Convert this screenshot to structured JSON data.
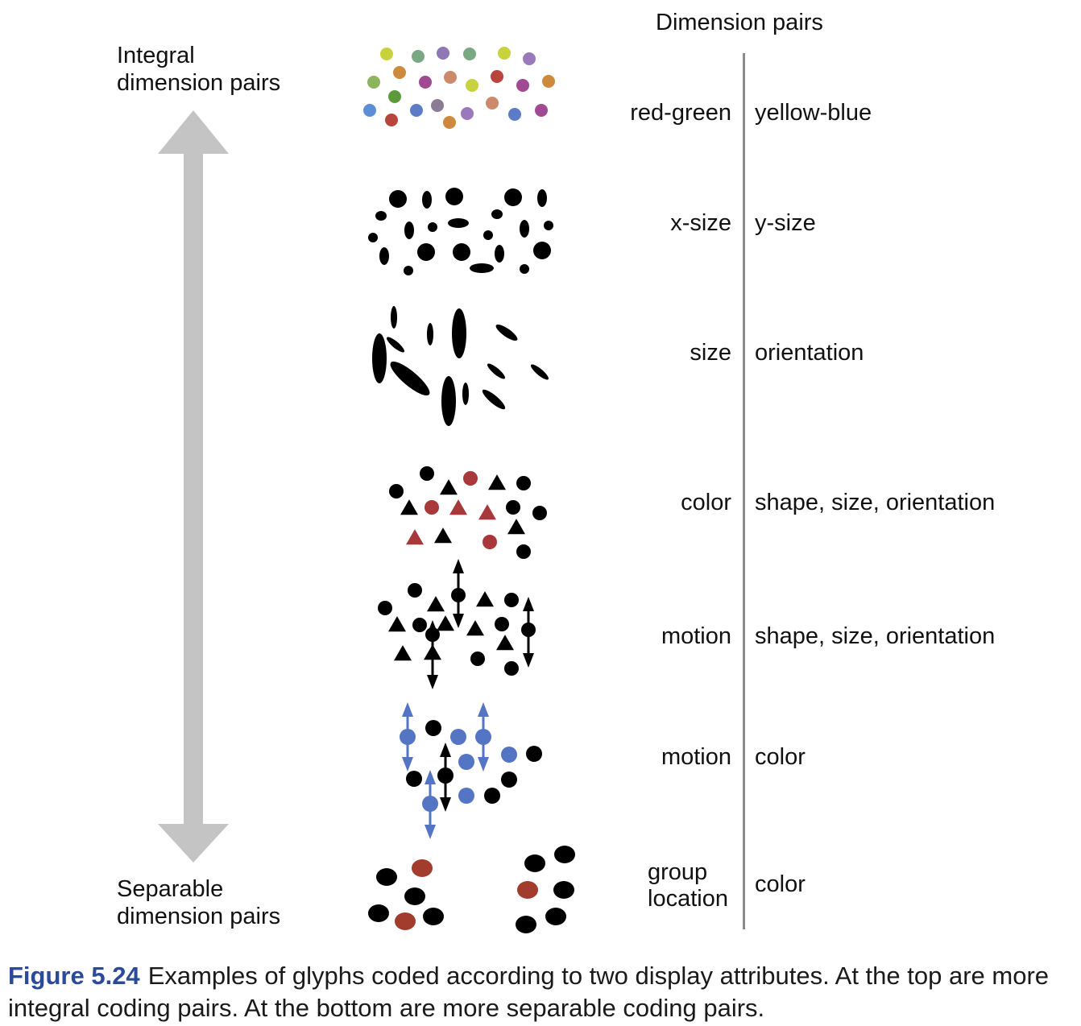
{
  "header": "Dimension pairs",
  "left_labels": {
    "top": [
      "Integral",
      "dimension pairs"
    ],
    "bottom": [
      "Separable",
      "dimension pairs"
    ]
  },
  "rows": [
    {
      "left": "red-green",
      "right": "yellow-blue"
    },
    {
      "left": "x-size",
      "right": "y-size"
    },
    {
      "left": "size",
      "right": "orientation"
    },
    {
      "left": "color",
      "right": "shape, size, orientation"
    },
    {
      "left": "motion",
      "right": "shape, size, orientation"
    },
    {
      "left": "motion",
      "right": "color"
    },
    {
      "left_lines": [
        "group",
        "location"
      ],
      "right": "color"
    }
  ],
  "caption": {
    "figure": "Figure 5.24",
    "text": "Examples of glyphs coded according to two display attributes. At the top are more integral coding pairs. At the bottom are more separable coding pairs."
  },
  "colors": {
    "arrow": "#c4c4c4",
    "divider": "#8a8a8a",
    "red": "#a8383a",
    "blue": "#5474c4",
    "brown": "#a23c2c",
    "figure_label": "#2b4a9a",
    "glyph": "#000000"
  }
}
